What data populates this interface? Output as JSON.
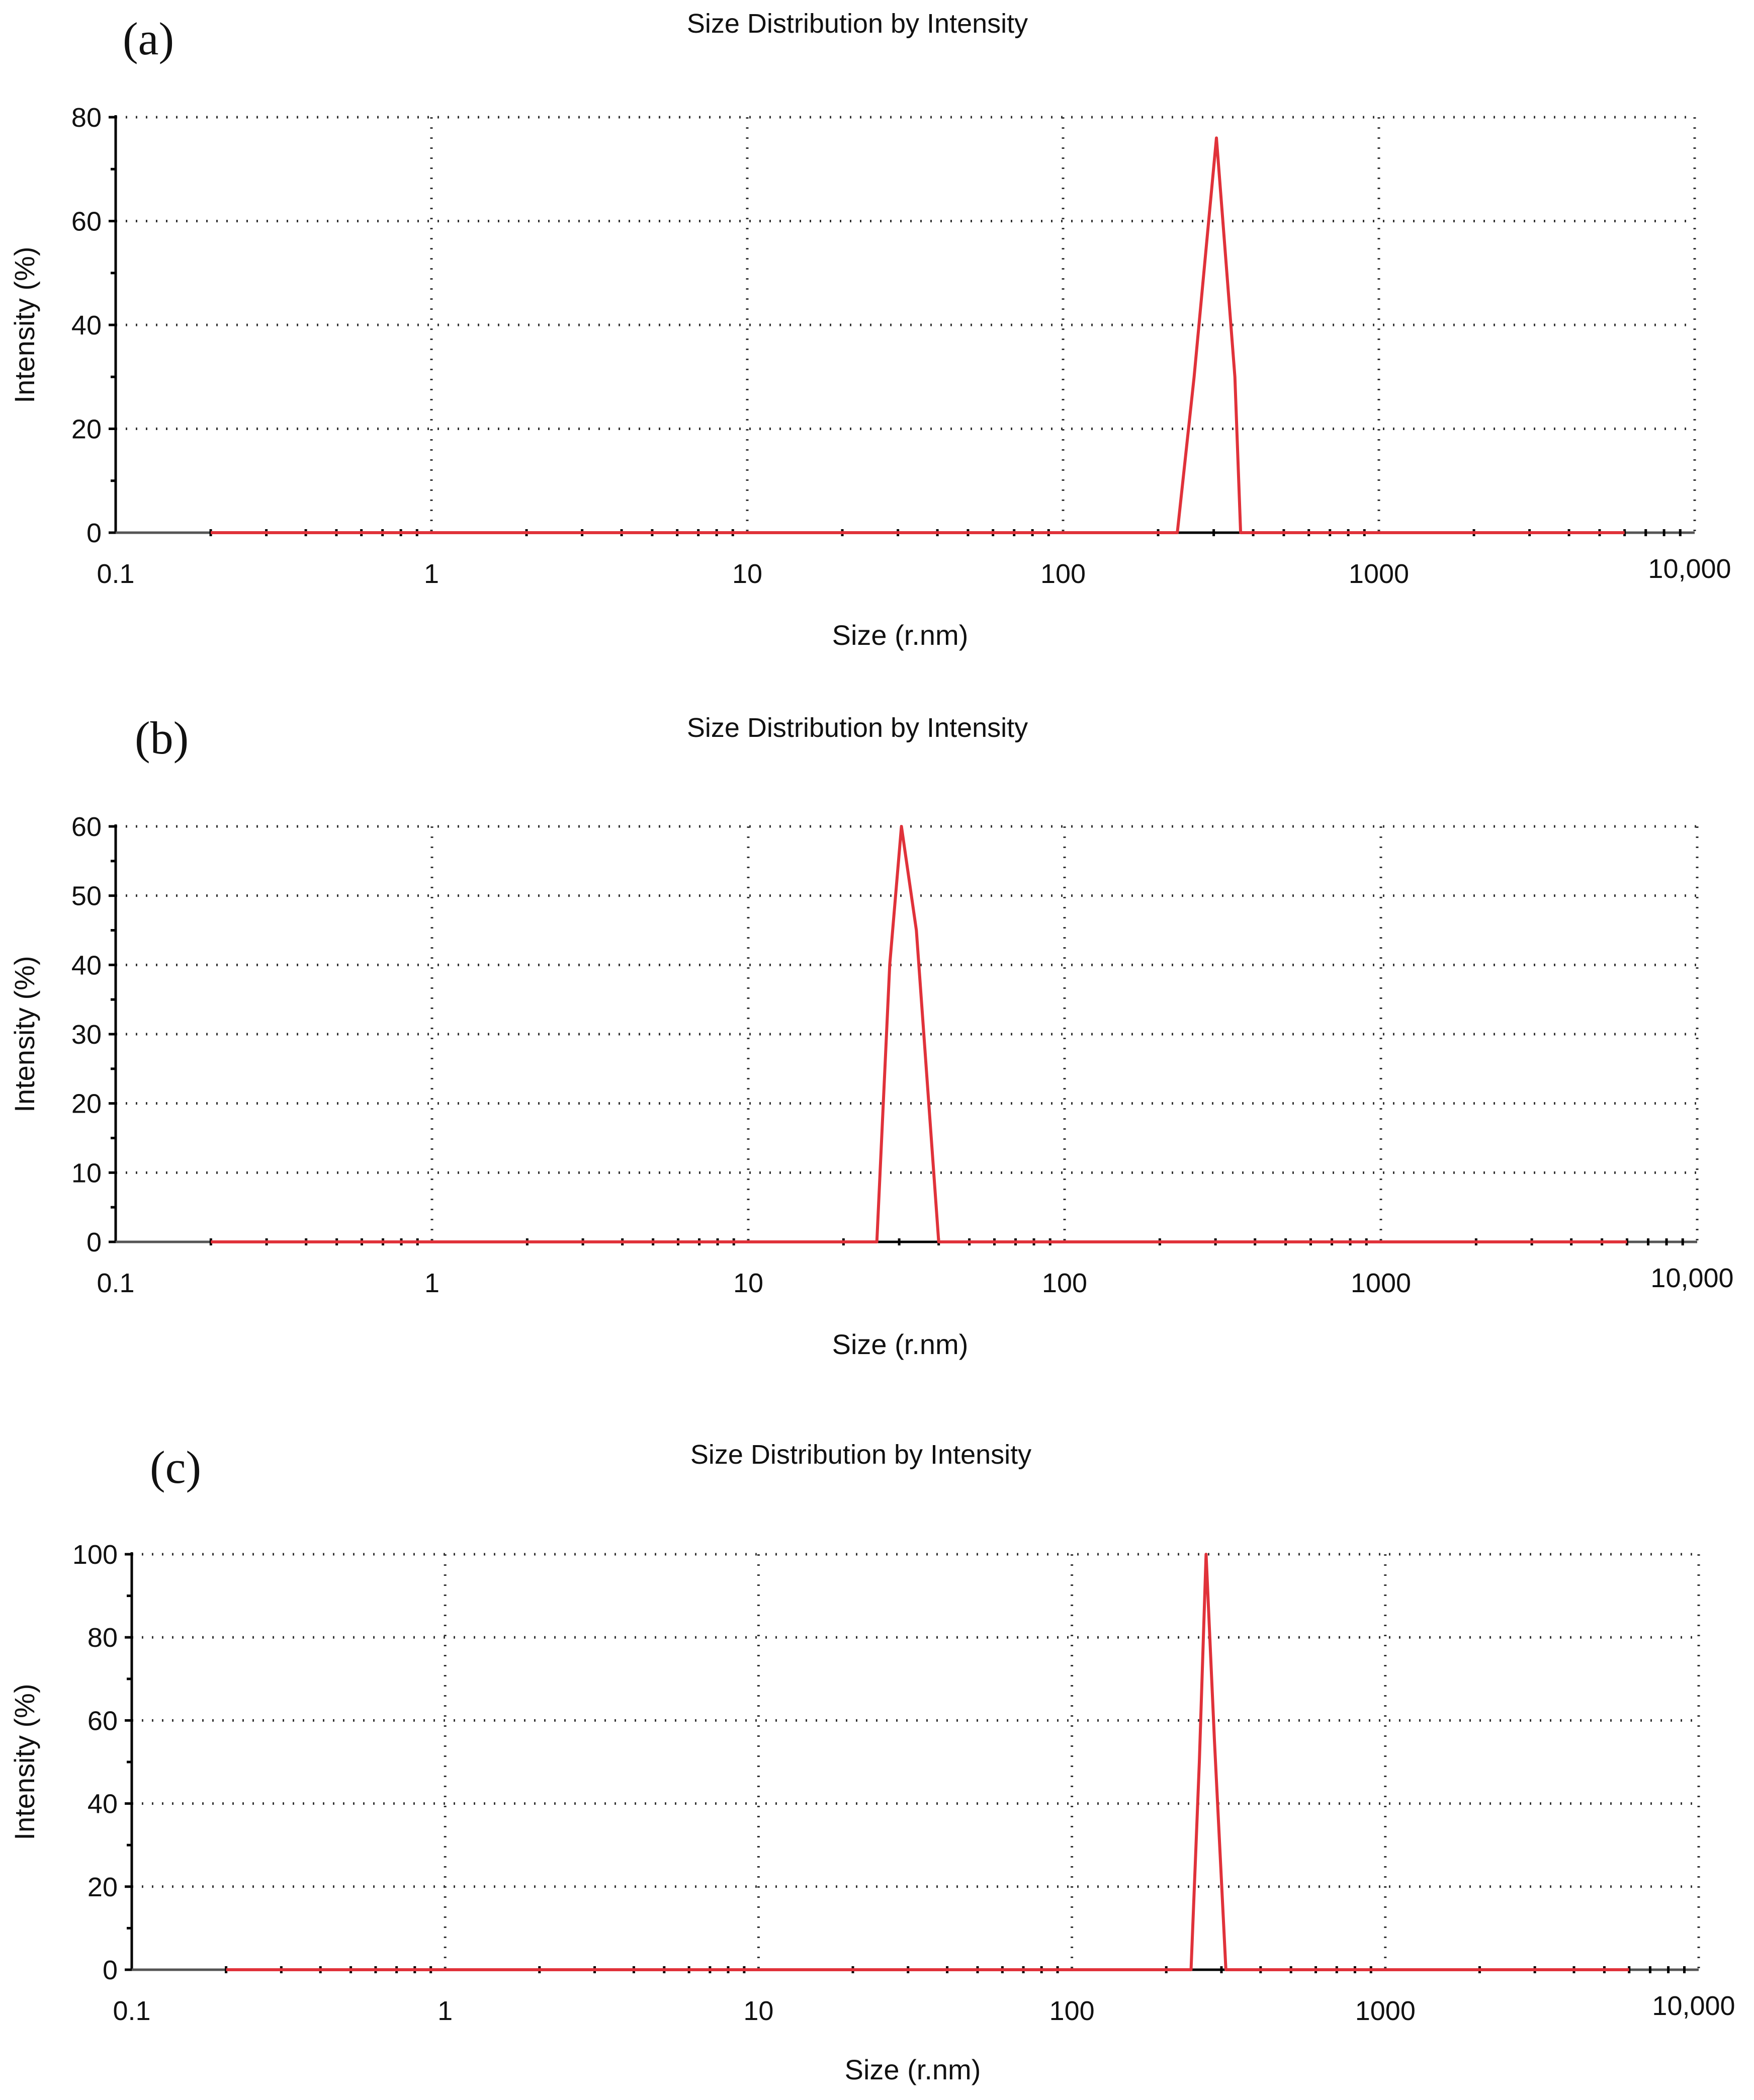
{
  "chart_data": [
    {
      "type": "line",
      "panel_label": "(a)",
      "title": "Size Distribution by Intensity",
      "xlabel": "Size (r.nm)",
      "ylabel": "Intensity (%)",
      "xscale": "log",
      "xlim": [
        0.1,
        10000
      ],
      "ylim": [
        0,
        80
      ],
      "xticks": [
        0.1,
        1,
        10,
        100,
        1000,
        10000
      ],
      "xtick_labels": [
        "0.1",
        "1",
        "10",
        "100",
        "1000",
        "10,000"
      ],
      "yticks": [
        0,
        20,
        40,
        60,
        80
      ],
      "ytick_labels": [
        "0",
        "20",
        "40",
        "60",
        "80"
      ],
      "grid": true,
      "series": [
        {
          "name": "Intensity",
          "color": "#e0323a",
          "x": [
            0.2,
            230,
            260,
            306,
            350,
            365,
            6000
          ],
          "y": [
            0,
            0,
            30,
            76,
            30,
            0,
            0
          ]
        }
      ]
    },
    {
      "type": "line",
      "panel_label": "(b)",
      "title": "Size Distribution by Intensity",
      "xlabel": "Size (r.nm)",
      "ylabel": "Intensity (%)",
      "xscale": "log",
      "xlim": [
        0.1,
        10000
      ],
      "ylim": [
        0,
        60
      ],
      "xticks": [
        0.1,
        1,
        10,
        100,
        1000,
        10000
      ],
      "xtick_labels": [
        "0.1",
        "1",
        "10",
        "100",
        "1000",
        "10,000"
      ],
      "yticks": [
        0,
        10,
        20,
        30,
        40,
        50,
        60
      ],
      "ytick_labels": [
        "0",
        "10",
        "20",
        "30",
        "40",
        "50",
        "60"
      ],
      "grid": true,
      "series": [
        {
          "name": "Intensity",
          "color": "#e0323a",
          "x": [
            0.2,
            25.5,
            28,
            30.5,
            34,
            40,
            6000
          ],
          "y": [
            0,
            0,
            40,
            60,
            45,
            0,
            0
          ]
        }
      ]
    },
    {
      "type": "line",
      "panel_label": "(c)",
      "title": "Size Distribution by Intensity",
      "xlabel": "Size (r.nm)",
      "ylabel": "Intensity (%)",
      "xscale": "log",
      "xlim": [
        0.1,
        10000
      ],
      "ylim": [
        0,
        100
      ],
      "xticks": [
        0.1,
        1,
        10,
        100,
        1000,
        10000
      ],
      "xtick_labels": [
        "0.1",
        "1",
        "10",
        "100",
        "1000",
        "10,000"
      ],
      "yticks": [
        0,
        20,
        40,
        60,
        80,
        100
      ],
      "ytick_labels": [
        "0",
        "20",
        "40",
        "60",
        "80",
        "100"
      ],
      "grid": true,
      "series": [
        {
          "name": "Intensity",
          "color": "#e0323a",
          "x": [
            0.2,
            240,
            255,
            268,
            285,
            310,
            6000
          ],
          "y": [
            0,
            0,
            50,
            100,
            55,
            0,
            0
          ]
        }
      ]
    }
  ]
}
